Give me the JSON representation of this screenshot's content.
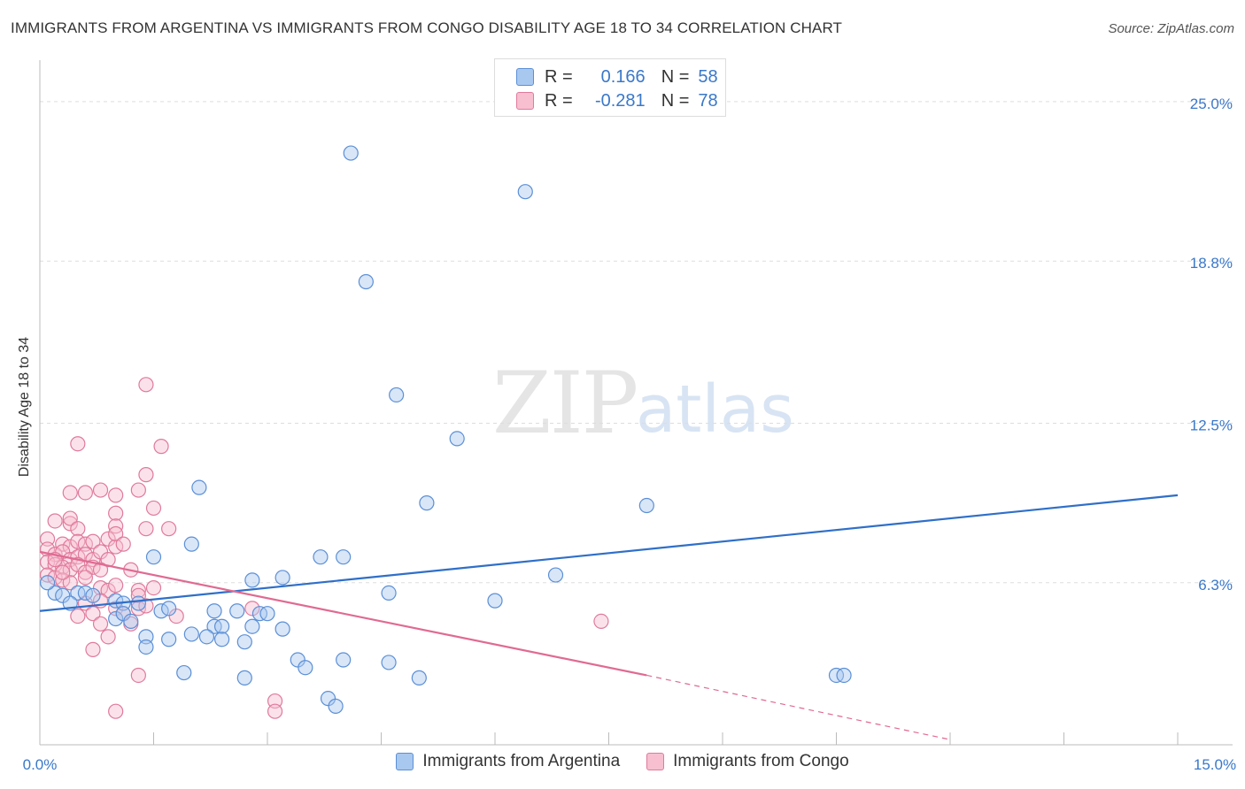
{
  "header": {
    "title": "IMMIGRANTS FROM ARGENTINA VS IMMIGRANTS FROM CONGO DISABILITY AGE 18 TO 34 CORRELATION CHART",
    "source": "Source: ZipAtlas.com"
  },
  "watermark": {
    "zip": "ZIP",
    "atlas": "atlas"
  },
  "legend": {
    "rows": [
      {
        "r_label": "R =",
        "r_value": "0.166",
        "n_label": "N =",
        "n_value": "58",
        "color": "#a9c8f0",
        "border": "#5b8fd6"
      },
      {
        "r_label": "R =",
        "r_value": "-0.281",
        "n_label": "N =",
        "n_value": "78",
        "color": "#f7bfd0",
        "border": "#e07a9c"
      }
    ]
  },
  "bottom_legend": {
    "argentina": "Immigrants from Argentina",
    "congo": "Immigrants from Congo"
  },
  "colors": {
    "argentina_fill": "#a9c8f0",
    "argentina_stroke": "#5b8fd6",
    "argentina_line": "#2f6fc8",
    "congo_fill": "#f7bfd0",
    "congo_stroke": "#e07a9c",
    "congo_line": "#e06a92",
    "axis_label": "#3a78c9",
    "grid": "#dddddd"
  },
  "chart_data": {
    "type": "scatter",
    "title": "IMMIGRANTS FROM ARGENTINA VS IMMIGRANTS FROM CONGO DISABILITY AGE 18 TO 34 CORRELATION CHART",
    "xlabel": "",
    "ylabel": "Disability Age 18 to 34",
    "xlim": [
      0,
      15
    ],
    "ylim": [
      0,
      26.2
    ],
    "x_tick_labels": [
      "0.0%",
      "15.0%"
    ],
    "y_ticks": [
      6.3,
      12.5,
      18.8,
      25.0
    ],
    "y_tick_labels": [
      "6.3%",
      "12.5%",
      "18.8%",
      "25.0%"
    ],
    "legend_position": "top-center",
    "series": [
      {
        "name": "Immigrants from Argentina",
        "r": 0.166,
        "n": 58,
        "trend": {
          "x": [
            0,
            15
          ],
          "y": [
            5.2,
            9.7
          ]
        },
        "points": [
          [
            4.1,
            23.0
          ],
          [
            6.4,
            21.5
          ],
          [
            4.3,
            18.0
          ],
          [
            4.7,
            13.6
          ],
          [
            5.5,
            11.9
          ],
          [
            2.1,
            10.0
          ],
          [
            5.1,
            9.4
          ],
          [
            8.0,
            9.3
          ],
          [
            2.0,
            7.8
          ],
          [
            1.5,
            7.3
          ],
          [
            3.7,
            7.3
          ],
          [
            4.0,
            7.3
          ],
          [
            6.8,
            6.6
          ],
          [
            3.2,
            6.5
          ],
          [
            2.8,
            6.4
          ],
          [
            0.2,
            5.9
          ],
          [
            0.3,
            5.8
          ],
          [
            0.5,
            5.9
          ],
          [
            0.6,
            5.9
          ],
          [
            0.7,
            5.8
          ],
          [
            4.6,
            5.9
          ],
          [
            6.0,
            5.6
          ],
          [
            0.4,
            5.5
          ],
          [
            1.0,
            5.6
          ],
          [
            1.1,
            5.5
          ],
          [
            1.3,
            5.5
          ],
          [
            1.6,
            5.2
          ],
          [
            1.7,
            5.3
          ],
          [
            2.3,
            5.2
          ],
          [
            2.6,
            5.2
          ],
          [
            2.9,
            5.1
          ],
          [
            3.0,
            5.1
          ],
          [
            1.0,
            4.9
          ],
          [
            1.1,
            5.1
          ],
          [
            1.2,
            4.8
          ],
          [
            2.3,
            4.6
          ],
          [
            2.4,
            4.6
          ],
          [
            2.8,
            4.6
          ],
          [
            3.2,
            4.5
          ],
          [
            1.4,
            4.2
          ],
          [
            1.7,
            4.1
          ],
          [
            2.0,
            4.3
          ],
          [
            2.2,
            4.2
          ],
          [
            2.4,
            4.1
          ],
          [
            2.7,
            4.0
          ],
          [
            1.4,
            3.8
          ],
          [
            3.4,
            3.3
          ],
          [
            4.0,
            3.3
          ],
          [
            4.6,
            3.2
          ],
          [
            3.5,
            3.0
          ],
          [
            1.9,
            2.8
          ],
          [
            2.7,
            2.6
          ],
          [
            5.0,
            2.6
          ],
          [
            10.5,
            2.7
          ],
          [
            10.6,
            2.7
          ],
          [
            3.8,
            1.8
          ],
          [
            3.9,
            1.5
          ],
          [
            0.1,
            6.3
          ]
        ]
      },
      {
        "name": "Immigrants from Congo",
        "r": -0.281,
        "n": 78,
        "trend": {
          "x": [
            0,
            8
          ],
          "y": [
            7.5,
            2.7
          ]
        },
        "trend_dashed": {
          "x": [
            8,
            12
          ],
          "y": [
            2.7,
            0.2
          ]
        },
        "points": [
          [
            1.4,
            14.0
          ],
          [
            0.5,
            11.7
          ],
          [
            1.6,
            11.6
          ],
          [
            1.4,
            10.5
          ],
          [
            0.4,
            9.8
          ],
          [
            0.6,
            9.8
          ],
          [
            0.8,
            9.9
          ],
          [
            1.0,
            9.7
          ],
          [
            1.3,
            9.9
          ],
          [
            1.5,
            9.2
          ],
          [
            1.0,
            9.0
          ],
          [
            0.2,
            8.7
          ],
          [
            0.4,
            8.6
          ],
          [
            0.4,
            8.8
          ],
          [
            0.5,
            8.4
          ],
          [
            1.0,
            8.5
          ],
          [
            1.4,
            8.4
          ],
          [
            0.1,
            8.0
          ],
          [
            0.3,
            7.8
          ],
          [
            0.4,
            7.7
          ],
          [
            0.5,
            7.9
          ],
          [
            0.6,
            7.8
          ],
          [
            0.7,
            7.9
          ],
          [
            0.9,
            8.0
          ],
          [
            1.0,
            7.7
          ],
          [
            1.0,
            8.2
          ],
          [
            1.1,
            7.8
          ],
          [
            0.1,
            7.6
          ],
          [
            0.2,
            7.4
          ],
          [
            0.3,
            7.5
          ],
          [
            0.4,
            7.2
          ],
          [
            0.5,
            7.3
          ],
          [
            0.6,
            7.4
          ],
          [
            0.7,
            7.2
          ],
          [
            0.8,
            7.5
          ],
          [
            0.9,
            7.2
          ],
          [
            0.1,
            7.1
          ],
          [
            0.2,
            7.0
          ],
          [
            0.3,
            6.9
          ],
          [
            0.4,
            6.8
          ],
          [
            0.5,
            7.0
          ],
          [
            0.6,
            6.7
          ],
          [
            0.7,
            6.9
          ],
          [
            0.8,
            6.8
          ],
          [
            0.1,
            6.6
          ],
          [
            0.2,
            6.5
          ],
          [
            0.3,
            6.4
          ],
          [
            0.4,
            6.3
          ],
          [
            0.6,
            6.5
          ],
          [
            0.8,
            6.1
          ],
          [
            0.9,
            6.0
          ],
          [
            1.0,
            6.2
          ],
          [
            1.3,
            6.0
          ],
          [
            1.5,
            6.1
          ],
          [
            1.2,
            6.8
          ],
          [
            1.3,
            5.8
          ],
          [
            0.6,
            5.5
          ],
          [
            0.8,
            5.6
          ],
          [
            1.0,
            5.3
          ],
          [
            1.1,
            5.1
          ],
          [
            1.3,
            5.3
          ],
          [
            1.4,
            5.4
          ],
          [
            0.5,
            5.0
          ],
          [
            0.7,
            5.1
          ],
          [
            1.8,
            5.0
          ],
          [
            2.8,
            5.3
          ],
          [
            7.4,
            4.8
          ],
          [
            0.8,
            4.7
          ],
          [
            1.2,
            4.7
          ],
          [
            0.9,
            4.2
          ],
          [
            0.7,
            3.7
          ],
          [
            1.3,
            2.7
          ],
          [
            3.1,
            1.7
          ],
          [
            3.1,
            1.3
          ],
          [
            1.0,
            1.3
          ],
          [
            0.2,
            7.2
          ],
          [
            0.3,
            6.7
          ],
          [
            1.7,
            8.4
          ]
        ]
      }
    ]
  }
}
